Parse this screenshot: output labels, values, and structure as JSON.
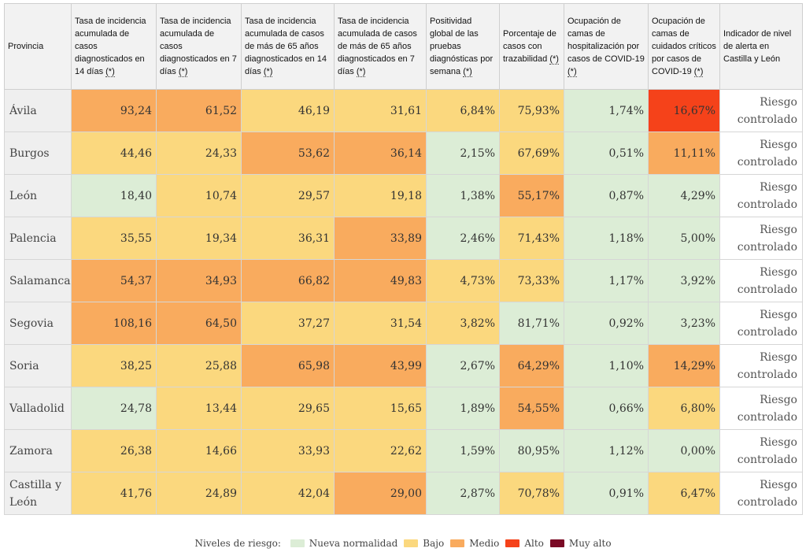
{
  "headers": [
    {
      "text": "Provincia",
      "ref": ""
    },
    {
      "text": "Tasa de incidencia acumulada de casos diagnosticados en 14 días ",
      "ref": "(*)"
    },
    {
      "text": "Tasa de incidencia acumulada de casos diagnosticados en 7 días ",
      "ref": "(*)"
    },
    {
      "text": "Tasa de incidencia acumulada de casos de más de 65 años diagnosticados en 14 días ",
      "ref": "(*)"
    },
    {
      "text": "Tasa de incidencia acumulada de casos de más de 65 años diagnosticados en 7 días ",
      "ref": "(*)"
    },
    {
      "text": "Positividad global de las pruebas diagnósticas por semana ",
      "ref": "(*)"
    },
    {
      "text": "Porcentaje de casos con trazabilidad ",
      "ref": "(*)"
    },
    {
      "text": "Ocupación de camas de hospitalización por casos de COVID-19 ",
      "ref": "(*)"
    },
    {
      "text": "Ocupación de camas de cuidados críticos por casos de COVID-19 ",
      "ref": "(*)"
    },
    {
      "text": "Indicador de nivel de alerta en Castilla y León",
      "ref": ""
    }
  ],
  "rows": [
    {
      "provincia": "Ávila",
      "values": [
        "93,24",
        "61,52",
        "46,19",
        "31,61",
        "6,84%",
        "75,93%",
        "1,74%",
        "16,67%"
      ],
      "levels": [
        "medio",
        "medio",
        "bajo",
        "bajo",
        "bajo",
        "bajo",
        "normal",
        "alto"
      ],
      "alerta": "Riesgo controlado"
    },
    {
      "provincia": "Burgos",
      "values": [
        "44,46",
        "24,33",
        "53,62",
        "36,14",
        "2,15%",
        "67,69%",
        "0,51%",
        "11,11%"
      ],
      "levels": [
        "bajo",
        "bajo",
        "medio",
        "medio",
        "normal",
        "bajo",
        "normal",
        "medio"
      ],
      "alerta": "Riesgo controlado"
    },
    {
      "provincia": "León",
      "values": [
        "18,40",
        "10,74",
        "29,57",
        "19,18",
        "1,38%",
        "55,17%",
        "0,87%",
        "4,29%"
      ],
      "levels": [
        "normal",
        "bajo",
        "bajo",
        "bajo",
        "normal",
        "medio",
        "normal",
        "normal"
      ],
      "alerta": "Riesgo controlado"
    },
    {
      "provincia": "Palencia",
      "values": [
        "35,55",
        "19,34",
        "36,31",
        "33,89",
        "2,46%",
        "71,43%",
        "1,18%",
        "5,00%"
      ],
      "levels": [
        "bajo",
        "bajo",
        "bajo",
        "medio",
        "normal",
        "bajo",
        "normal",
        "normal"
      ],
      "alerta": "Riesgo controlado"
    },
    {
      "provincia": "Salamanca",
      "values": [
        "54,37",
        "34,93",
        "66,82",
        "49,83",
        "4,73%",
        "73,33%",
        "1,17%",
        "3,92%"
      ],
      "levels": [
        "medio",
        "medio",
        "medio",
        "medio",
        "bajo",
        "bajo",
        "normal",
        "normal"
      ],
      "alerta": "Riesgo controlado"
    },
    {
      "provincia": "Segovia",
      "values": [
        "108,16",
        "64,50",
        "37,27",
        "31,54",
        "3,82%",
        "81,71%",
        "0,92%",
        "3,23%"
      ],
      "levels": [
        "medio",
        "medio",
        "bajo",
        "bajo",
        "bajo",
        "normal",
        "normal",
        "normal"
      ],
      "alerta": "Riesgo controlado"
    },
    {
      "provincia": "Soria",
      "values": [
        "38,25",
        "25,88",
        "65,98",
        "43,99",
        "2,67%",
        "64,29%",
        "1,10%",
        "14,29%"
      ],
      "levels": [
        "bajo",
        "bajo",
        "medio",
        "medio",
        "normal",
        "medio",
        "normal",
        "medio"
      ],
      "alerta": "Riesgo controlado"
    },
    {
      "provincia": "Valladolid",
      "values": [
        "24,78",
        "13,44",
        "29,65",
        "15,65",
        "1,89%",
        "54,55%",
        "0,66%",
        "6,80%"
      ],
      "levels": [
        "normal",
        "bajo",
        "bajo",
        "bajo",
        "normal",
        "medio",
        "normal",
        "bajo"
      ],
      "alerta": "Riesgo controlado"
    },
    {
      "provincia": "Zamora",
      "values": [
        "26,38",
        "14,66",
        "33,93",
        "22,62",
        "1,59%",
        "80,95%",
        "1,12%",
        "0,00%"
      ],
      "levels": [
        "bajo",
        "bajo",
        "bajo",
        "bajo",
        "normal",
        "normal",
        "normal",
        "normal"
      ],
      "alerta": "Riesgo controlado"
    },
    {
      "provincia": "Castilla y León",
      "values": [
        "41,76",
        "24,89",
        "42,04",
        "29,00",
        "2,87%",
        "70,78%",
        "0,91%",
        "6,47%"
      ],
      "levels": [
        "bajo",
        "bajo",
        "bajo",
        "medio",
        "normal",
        "bajo",
        "normal",
        "bajo"
      ],
      "alerta": "Riesgo controlado"
    }
  ],
  "legend": {
    "title": "Niveles de riesgo:",
    "items": [
      {
        "key": "normal",
        "label": "Nueva normalidad"
      },
      {
        "key": "bajo",
        "label": "Bajo"
      },
      {
        "key": "medio",
        "label": "Medio"
      },
      {
        "key": "alto",
        "label": "Alto"
      },
      {
        "key": "muyalto",
        "label": "Muy alto"
      }
    ]
  },
  "colors": {
    "normal": "#dcedd6",
    "bajo": "#fbd87e",
    "medio": "#f9ab5e",
    "alto": "#f5421a",
    "muyalto": "#7a0a25"
  }
}
